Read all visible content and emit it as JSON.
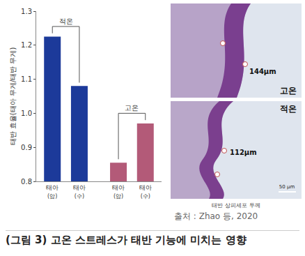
{
  "chart_data": {
    "type": "bar",
    "y_label": "태반 효율(태아 무게/태반 무게)",
    "categories": [
      "태아\n(암)",
      "태아\n(수)",
      "태아\n(암)",
      "태아\n(수)"
    ],
    "values": [
      1.225,
      1.08,
      0.855,
      0.97
    ],
    "colors": [
      "#1c3a9a",
      "#1c3a9a",
      "#b35a78",
      "#b35a78"
    ],
    "groups": [
      {
        "label": "적온",
        "members": [
          0,
          1
        ]
      },
      {
        "label": "고온",
        "members": [
          2,
          3
        ]
      }
    ],
    "ylim": [
      0.8,
      1.3
    ],
    "yticks": [
      0.8,
      0.9,
      {
        "value": 1,
        "label": "1.0"
      },
      1.1,
      1.2,
      1.3
    ],
    "grid": false
  },
  "image_panel": {
    "top_label": "고온",
    "top_thickness": "144μm",
    "bottom_label": "적온",
    "bottom_thickness": "112μm",
    "scale_bar": "50 μm",
    "caption": "태반 상피세포 두께"
  },
  "source": "출처 : Zhao 등, 2020",
  "figure_caption": "(그림 3) 고온 스트레스가 태반 기능에 미치는 영향"
}
